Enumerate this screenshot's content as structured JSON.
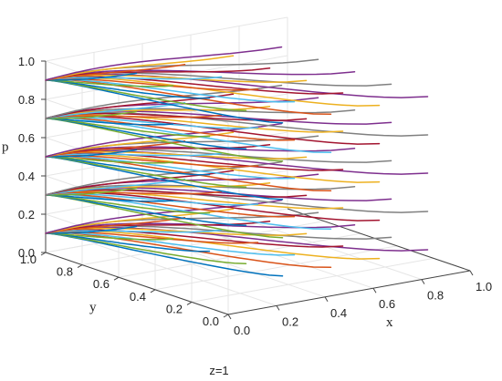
{
  "chart_data": {
    "type": "line",
    "subtype": "3d-phase-trajectories",
    "title": "z=1",
    "xlabel": "x",
    "ylabel": "y",
    "zlabel": "p",
    "xlim": [
      0,
      1
    ],
    "ylim": [
      0,
      1
    ],
    "zlim": [
      0,
      1
    ],
    "x_ticks": [
      "0.0",
      "0.2",
      "0.4",
      "0.6",
      "0.8",
      "1.0"
    ],
    "y_ticks": [
      "0.0",
      "0.2",
      "0.4",
      "0.6",
      "0.8",
      "1.0"
    ],
    "z_ticks": [
      "0.0",
      "0.2",
      "0.4",
      "0.6",
      "0.8",
      "1.0"
    ],
    "grid": true,
    "legend": "none",
    "converges_to": {
      "x": 0,
      "y": 1
    },
    "initial_p_levels": [
      0.1,
      0.3,
      0.5,
      0.7,
      0.9
    ],
    "initial_y_values": [
      0.1,
      0.3,
      0.5,
      0.7,
      0.9
    ],
    "initial_x_values": [
      0.3,
      0.5,
      0.7,
      0.9
    ],
    "series_colors": [
      "#0072BD",
      "#D95319",
      "#EDB120",
      "#7E2F8E",
      "#77AC30",
      "#4DBEEE",
      "#A2142F",
      "#808080"
    ]
  }
}
